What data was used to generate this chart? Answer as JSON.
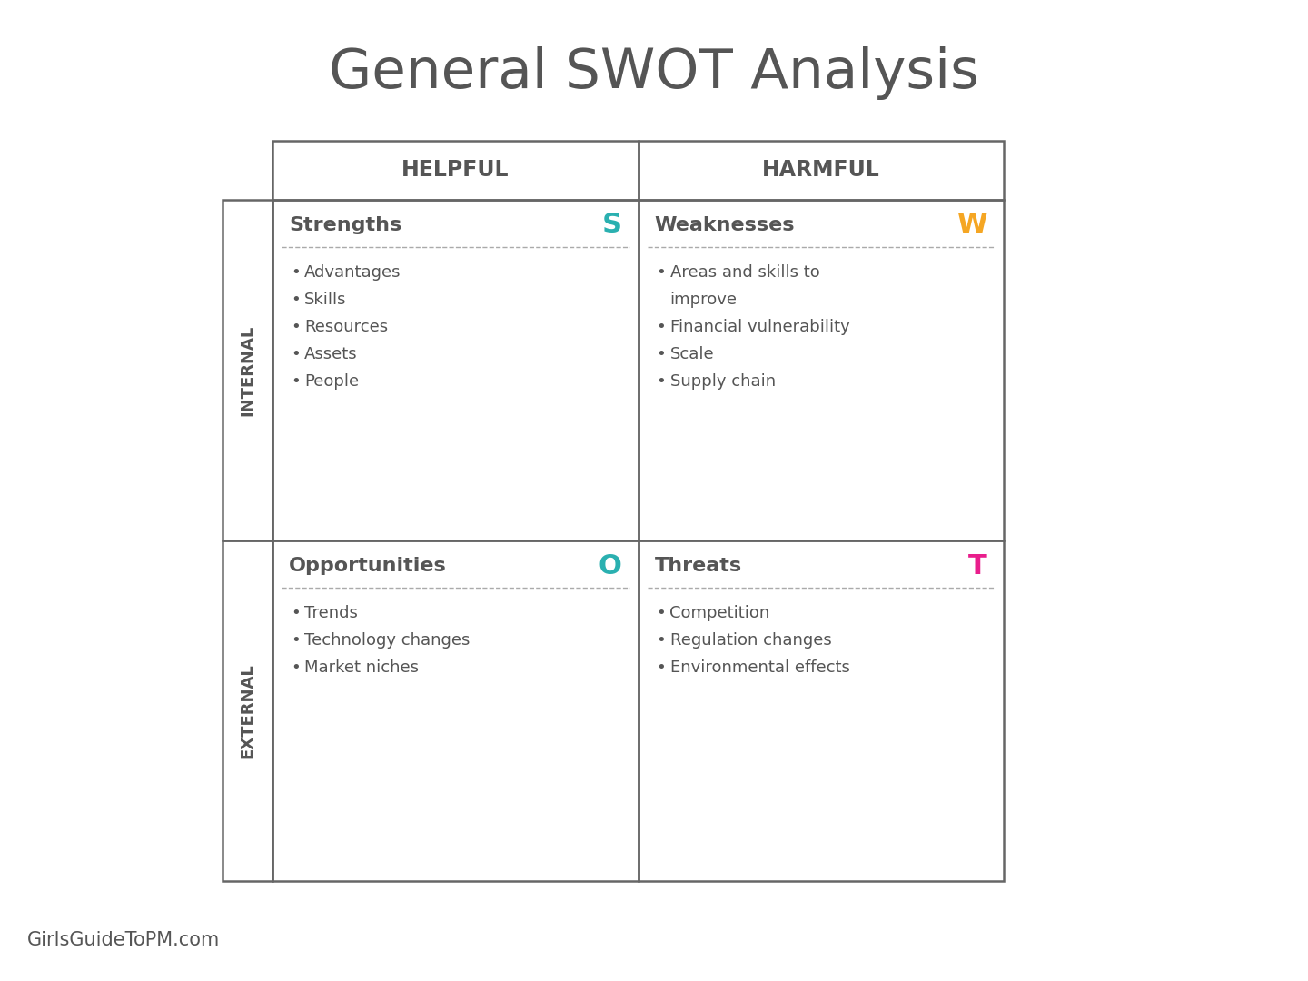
{
  "title": "General SWOT Analysis",
  "title_color": "#555555",
  "title_fontsize": 44,
  "background_color": "#ffffff",
  "border_color": "#666666",
  "text_color": "#555555",
  "header_row": [
    "HELPFUL",
    "HARMFUL"
  ],
  "side_labels": [
    "INTERNAL",
    "EXTERNAL"
  ],
  "quadrants": [
    {
      "label": "Strengths",
      "letter": "S",
      "letter_color": "#2ab0b0",
      "items": [
        "Advantages",
        "Skills",
        "Resources",
        "Assets",
        "People"
      ]
    },
    {
      "label": "Weaknesses",
      "letter": "W",
      "letter_color": "#f5a623",
      "items": [
        "Areas and skills to\nimprove",
        "Financial vulnerability",
        "Scale",
        "Supply chain"
      ]
    },
    {
      "label": "Opportunities",
      "letter": "O",
      "letter_color": "#2ab0b0",
      "items": [
        "Trends",
        "Technology changes",
        "Market niches"
      ]
    },
    {
      "label": "Threats",
      "letter": "T",
      "letter_color": "#e91e8c",
      "items": [
        "Competition",
        "Regulation changes",
        "Environmental effects"
      ]
    }
  ],
  "footer_text": "GirlsGuideToPM.com",
  "footer_color": "#555555",
  "footer_fontsize": 15
}
